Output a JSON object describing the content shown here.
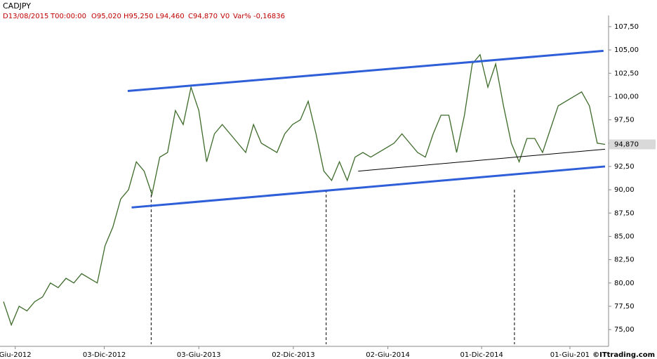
{
  "chart_data": {
    "type": "line",
    "symbol": "CADJPY",
    "header": [
      "D13/08/2015",
      "T00:00:00",
      "O95,020",
      "H95,250",
      "L94,460",
      "C94,870",
      "V0",
      "Var% -0,16836"
    ],
    "series": [
      {
        "name": "CADJPY",
        "color": "#3d6b2a",
        "values": [
          78,
          75.5,
          77.5,
          77,
          78,
          78.5,
          80,
          79.5,
          80.5,
          80,
          81,
          80.5,
          80,
          84,
          86,
          89,
          90,
          93,
          92,
          89.5,
          93.5,
          94,
          98.5,
          97,
          101,
          98.5,
          93,
          96,
          97,
          96,
          95,
          94,
          97,
          95,
          94.5,
          94,
          96,
          97,
          97.5,
          99.5,
          96,
          92,
          91,
          93,
          91,
          93.5,
          94,
          93.5,
          94,
          94.5,
          95,
          96,
          95,
          94,
          93.5,
          96,
          98,
          98,
          94,
          98,
          103.5,
          104.5,
          101,
          103.5,
          99,
          95,
          93,
          95.5,
          95.5,
          94,
          96.5,
          99,
          99.5,
          100,
          100.5,
          99,
          95,
          94.87
        ]
      }
    ],
    "trendlines": [
      {
        "color": "#2f5fd8",
        "x": [
          15.9,
          76.8
        ],
        "y": [
          100.6,
          104.9
        ]
      },
      {
        "color": "#2f5fd8",
        "x": [
          16.4,
          77
        ],
        "y": [
          88.1,
          92.5
        ]
      },
      {
        "color": "#000000",
        "x": [
          45.4,
          77
        ],
        "y": [
          92,
          94.35
        ]
      }
    ],
    "vlines": [
      18.9,
      41.3,
      65.4
    ],
    "last_price": {
      "value": 94.87,
      "label": "94,870"
    },
    "xlim": [
      0,
      77
    ],
    "xticks": [
      {
        "value": 1.5,
        "label": "Giu-2012"
      },
      {
        "value": 12.9,
        "label": "03-Dic-2012"
      },
      {
        "value": 25,
        "label": "03-Giu-2013"
      },
      {
        "value": 37.1,
        "label": "02-Dic-2013"
      },
      {
        "value": 49.2,
        "label": "02-Giu-2014"
      },
      {
        "value": 61.2,
        "label": "01-Dic-2014"
      },
      {
        "value": 72.5,
        "label": "01-Giu-201"
      }
    ],
    "ylim": [
      73.2,
      108.7
    ],
    "yticks": [
      {
        "value": 75,
        "label": "75,00"
      },
      {
        "value": 77.5,
        "label": "77,50"
      },
      {
        "value": 80,
        "label": "80,00"
      },
      {
        "value": 82.5,
        "label": "82,50"
      },
      {
        "value": 85,
        "label": "85,00"
      },
      {
        "value": 87.5,
        "label": "87,50"
      },
      {
        "value": 90,
        "label": "90,00"
      },
      {
        "value": 92.5,
        "label": "92,50"
      },
      {
        "value": 95,
        "label": "95,00"
      },
      {
        "value": 97.5,
        "label": "97,50"
      },
      {
        "value": 100,
        "label": "100,00"
      },
      {
        "value": 102.5,
        "label": "102,50"
      },
      {
        "value": 105,
        "label": "105,00"
      },
      {
        "value": 107.5,
        "label": "107,50"
      }
    ],
    "credit": "©ITtrading.com"
  }
}
